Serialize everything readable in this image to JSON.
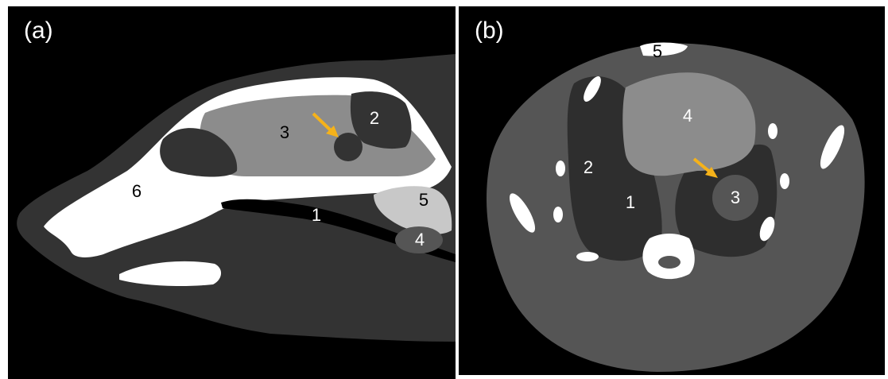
{
  "panels": [
    {
      "tag": "(a)",
      "labels": [
        "1",
        "2",
        "3",
        "4",
        "5",
        "6"
      ]
    },
    {
      "tag": "(b)",
      "labels": [
        "1",
        "2",
        "3",
        "4",
        "5"
      ]
    }
  ],
  "colors": {
    "background": "#000000",
    "soft_tissue_dark": "#333333",
    "soft_tissue": "#555555",
    "brain_or_heart": "#8c8c8c",
    "lung": "#2e2e2e",
    "bone": "#ffffff",
    "light_tissue": "#c8c8c8",
    "arrow": "#f5b21a"
  },
  "icons": [
    "arrow-icon"
  ]
}
